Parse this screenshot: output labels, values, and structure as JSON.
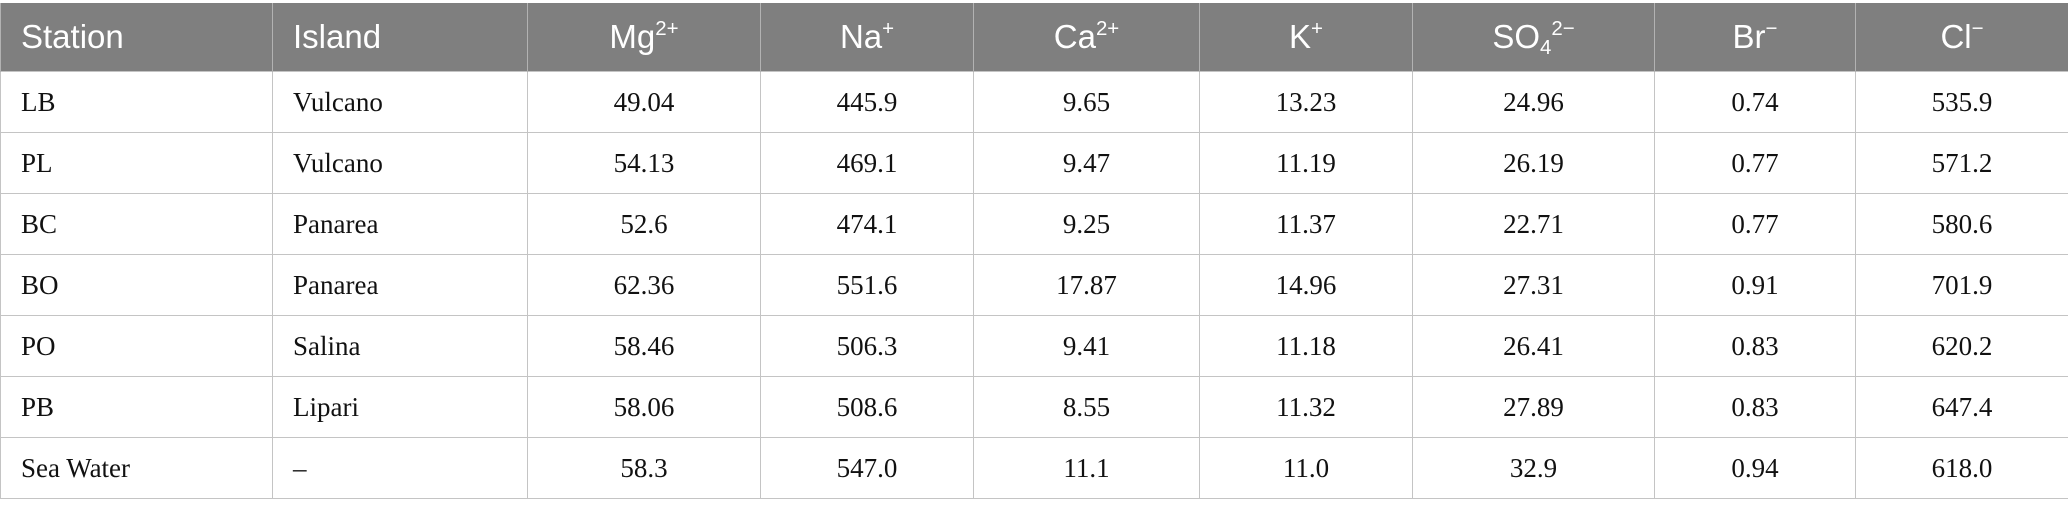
{
  "table": {
    "columns": [
      {
        "name": "Station"
      },
      {
        "name": "Island"
      },
      {
        "base": "Mg",
        "sup": "2+"
      },
      {
        "base": "Na",
        "sup": "+"
      },
      {
        "base": "Ca",
        "sup": "2+"
      },
      {
        "base": "K",
        "sup": "+"
      },
      {
        "base": "SO",
        "sub": "4",
        "sup": "2−"
      },
      {
        "base": "Br",
        "sup": "−"
      },
      {
        "base": "Cl",
        "sup": "−"
      }
    ],
    "rows": [
      [
        "LB",
        "Vulcano",
        "49.04",
        "445.9",
        "9.65",
        "13.23",
        "24.96",
        "0.74",
        "535.9"
      ],
      [
        "PL",
        "Vulcano",
        "54.13",
        "469.1",
        "9.47",
        "11.19",
        "26.19",
        "0.77",
        "571.2"
      ],
      [
        "BC",
        "Panarea",
        "52.6",
        "474.1",
        "9.25",
        "11.37",
        "22.71",
        "0.77",
        "580.6"
      ],
      [
        "BO",
        "Panarea",
        "62.36",
        "551.6",
        "17.87",
        "14.96",
        "27.31",
        "0.91",
        "701.9"
      ],
      [
        "PO",
        "Salina",
        "58.46",
        "506.3",
        "9.41",
        "11.18",
        "26.41",
        "0.83",
        "620.2"
      ],
      [
        "PB",
        "Lipari",
        "58.06",
        "508.6",
        "8.55",
        "11.32",
        "27.89",
        "0.83",
        "647.4"
      ],
      [
        "Sea Water",
        "–",
        "58.3",
        "547.0",
        "11.1",
        "11.0",
        "32.9",
        "0.94",
        "618.0"
      ]
    ]
  }
}
